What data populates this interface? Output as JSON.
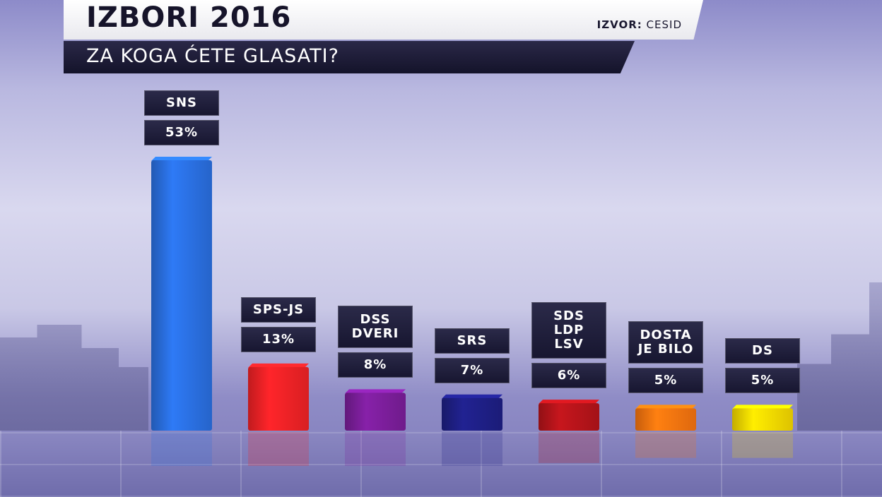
{
  "header": {
    "title": "IZBORI 2016",
    "source_label": "IZVOR:",
    "source_value": "CESID",
    "subtitle": "ZA KOGA ĆETE GLASATI?"
  },
  "chart_data": {
    "type": "bar",
    "title": "IZBORI 2016",
    "subtitle": "ZA KOGA ĆETE GLASATI?",
    "categories": [
      "SNS",
      "SPS-JS",
      "DSS\nDVERI",
      "SRS",
      "SDS\nLDP\nLSV",
      "DOSTA\nJE BILO",
      "DS"
    ],
    "values": [
      53,
      13,
      8,
      7,
      6,
      5,
      5
    ],
    "value_labels": [
      "53%",
      "13%",
      "8%",
      "7%",
      "6%",
      "5%",
      "5%"
    ],
    "unit": "%",
    "colors": [
      "#2a6fe0",
      "#f02226",
      "#7b1e9a",
      "#1e1f85",
      "#b5141a",
      "#f7740f",
      "#f5d800"
    ],
    "xlabel": "",
    "ylabel": "",
    "ylim": [
      0,
      55
    ],
    "grid": false,
    "legend": "none"
  }
}
